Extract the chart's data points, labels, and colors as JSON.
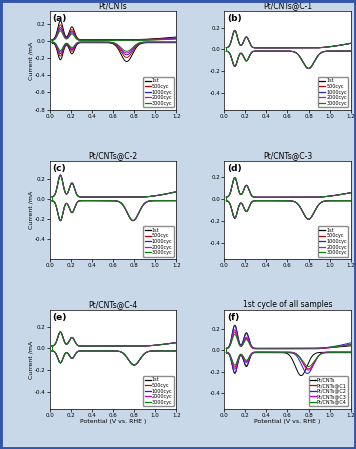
{
  "background_color": "#c8d8e8",
  "subplots": [
    {
      "label": "(a)",
      "title": "Pt/CNTs"
    },
    {
      "label": "(b)",
      "title": "Pt/CNTs@C-1"
    },
    {
      "label": "(c)",
      "title": "Pt/CNTs@C-2"
    },
    {
      "label": "(d)",
      "title": "Pt/CNTs@C-3"
    },
    {
      "label": "(e)",
      "title": "Pt/CNTs@C-4"
    },
    {
      "label": "(f)",
      "title": "1st cycle of all samples"
    }
  ],
  "cycle_colors": [
    "#000000",
    "#cc0000",
    "#2222cc",
    "#cc00cc",
    "#008800"
  ],
  "cycle_labels": [
    "1st",
    "500cyc",
    "1000cyc",
    "2000cyc",
    "3000cyc"
  ],
  "sample_colors": [
    "#000000",
    "#cc0000",
    "#2222cc",
    "#cc00cc",
    "#008800"
  ],
  "sample_labels": [
    "Pt/CNTs",
    "Pt/CNTs@C1",
    "Pt/CNTs@C2",
    "Pt/CNTs@C3",
    "Pt/CNTs@C4"
  ],
  "xlim": [
    0.0,
    1.2
  ],
  "xlabel": "Potential (V vs. RHE )",
  "ylabel": "Current /mA"
}
